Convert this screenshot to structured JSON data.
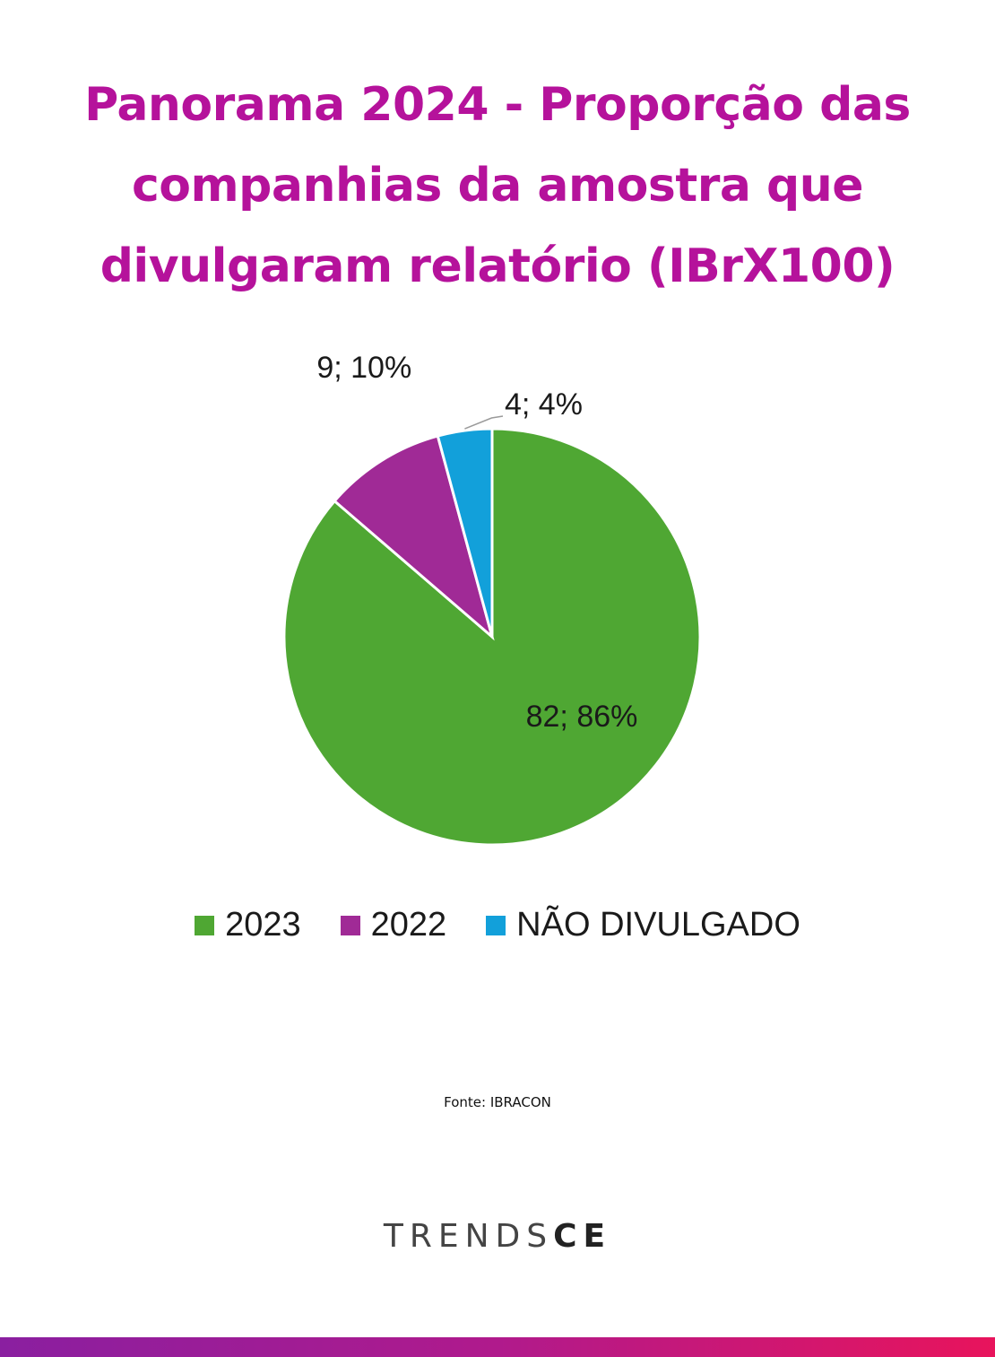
{
  "title_lines": [
    "Panorama 2024 - Proporção das",
    "companhias da amostra que",
    "divulgaram relatório (IBrX100)"
  ],
  "chart_data": {
    "type": "pie",
    "title": "Panorama 2024 - Proporção das companhias da amostra que divulgaram relatório (IBrX100)",
    "categories": [
      "2023",
      "2022",
      "NÃO DIVULGADO"
    ],
    "values": [
      82,
      9,
      4
    ],
    "percent": [
      86,
      10,
      4
    ],
    "data_labels": [
      "82; 86%",
      "9; 10%",
      "4; 4%"
    ],
    "colors": [
      "#4fa733",
      "#a02a96",
      "#12a0da"
    ],
    "start": "12 o'clock",
    "direction": "clockwise",
    "legend": "bottom"
  },
  "source": "Fonte: IBRACON",
  "brand": {
    "part1": "TRENDS",
    "part2": "CE"
  }
}
